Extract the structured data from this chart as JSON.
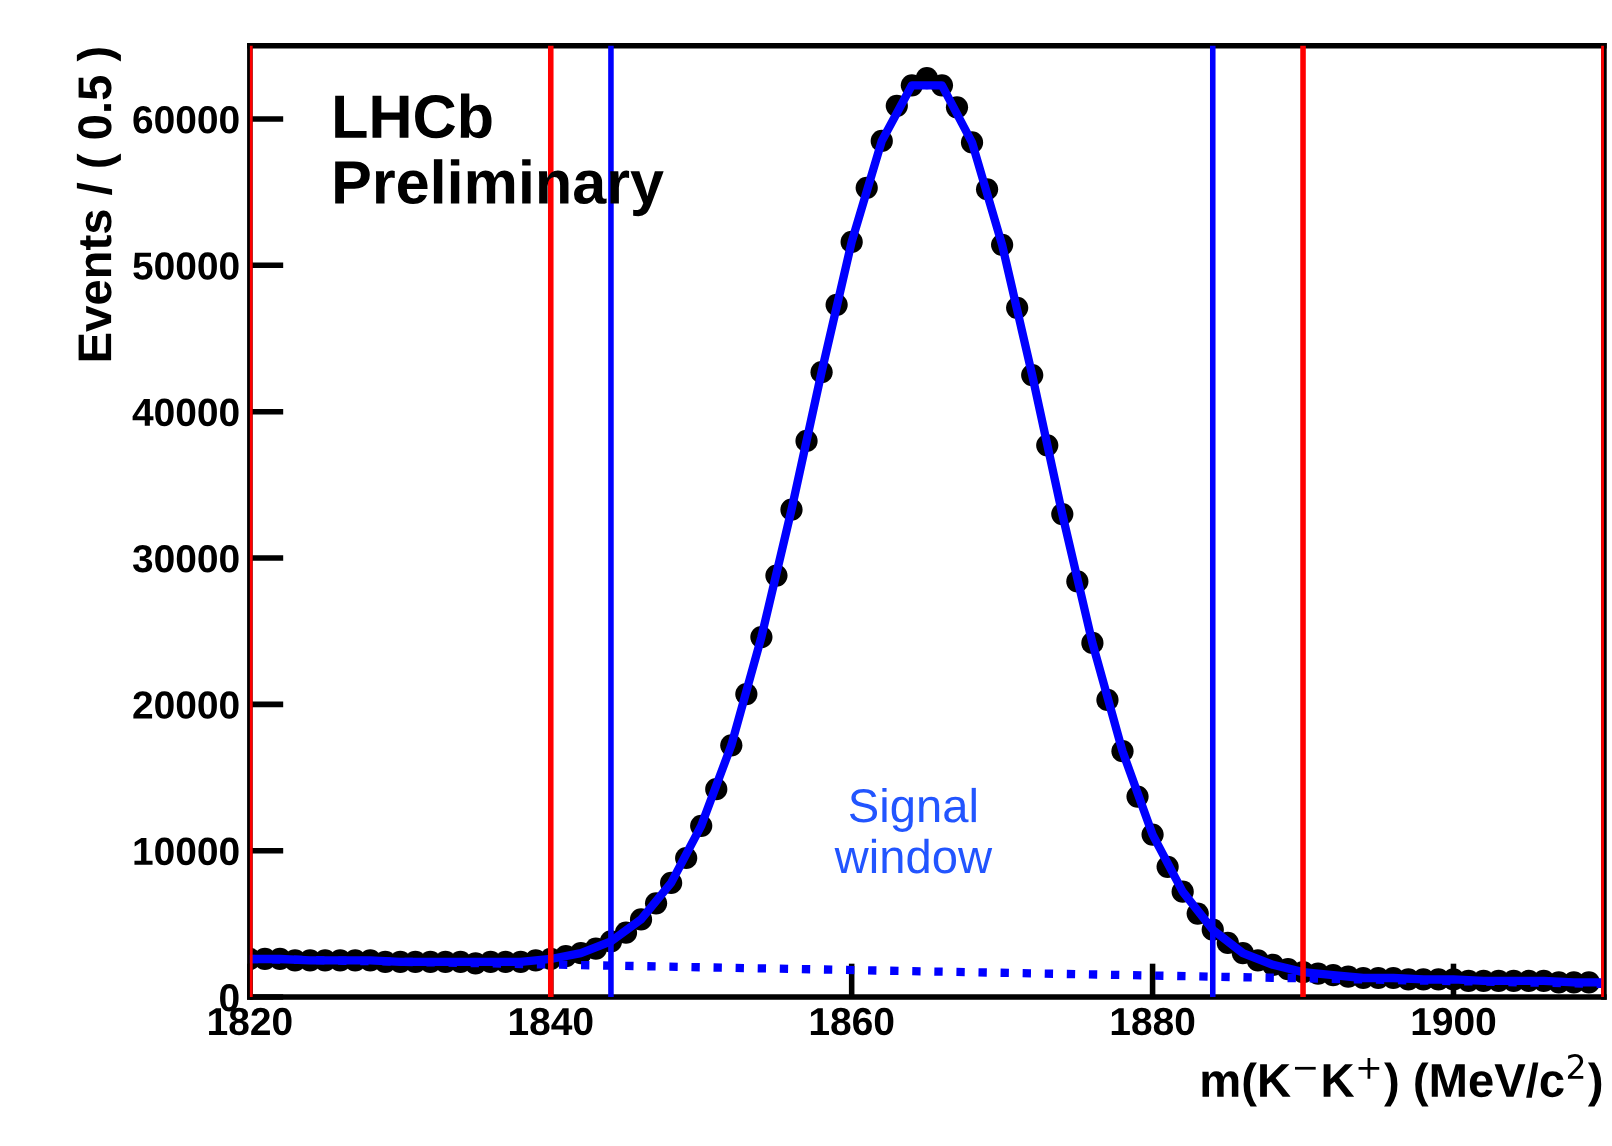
{
  "chart_data": {
    "type": "scatter",
    "xlabel": "m(K$^{−}$K$^{+}$) (MeV/c$^{2}$)",
    "ylabel": "Events / ( 0.5 )",
    "xlim": [
      1820,
      1910
    ],
    "xticks": [
      1820,
      1840,
      1860,
      1880,
      1900
    ],
    "ylim": [
      0,
      65000
    ],
    "yticks": [
      0,
      10000,
      20000,
      30000,
      40000,
      50000,
      60000
    ],
    "grid": false,
    "legend": false,
    "x": [
      1820,
      1821,
      1822,
      1823,
      1824,
      1825,
      1826,
      1827,
      1828,
      1829,
      1830,
      1831,
      1832,
      1833,
      1834,
      1835,
      1836,
      1837,
      1838,
      1839,
      1840,
      1841,
      1842,
      1843,
      1844,
      1845,
      1846,
      1847,
      1848,
      1849,
      1850,
      1851,
      1852,
      1853,
      1854,
      1855,
      1856,
      1857,
      1858,
      1859,
      1860,
      1861,
      1862,
      1863,
      1864,
      1865,
      1866,
      1867,
      1868,
      1869,
      1870,
      1871,
      1872,
      1873,
      1874,
      1875,
      1876,
      1877,
      1878,
      1879,
      1880,
      1881,
      1882,
      1883,
      1884,
      1885,
      1886,
      1887,
      1888,
      1889,
      1890,
      1891,
      1892,
      1893,
      1894,
      1895,
      1896,
      1897,
      1898,
      1899,
      1900,
      1901,
      1902,
      1903,
      1904,
      1905,
      1906,
      1907,
      1908,
      1909
    ],
    "series": [
      {
        "color": "#000000",
        "marker": "circle",
        "values": [
          2600,
          2600,
          2600,
          2500,
          2500,
          2500,
          2500,
          2500,
          2500,
          2400,
          2400,
          2400,
          2400,
          2400,
          2400,
          2300,
          2400,
          2400,
          2400,
          2500,
          2600,
          2800,
          3000,
          3300,
          3800,
          4400,
          5300,
          6400,
          7800,
          9500,
          11700,
          14200,
          17200,
          20700,
          24600,
          28800,
          33300,
          38000,
          42700,
          47300,
          51600,
          55300,
          58500,
          60900,
          62300,
          62800,
          62300,
          60800,
          58400,
          55200,
          51400,
          47100,
          42500,
          37700,
          33000,
          28400,
          24200,
          20300,
          16800,
          13700,
          11100,
          8900,
          7200,
          5700,
          4600,
          3700,
          3000,
          2500,
          2200,
          1900,
          1700,
          1600,
          1500,
          1400,
          1300,
          1300,
          1300,
          1200,
          1200,
          1200,
          1200,
          1100,
          1100,
          1100,
          1100,
          1100,
          1100,
          1000,
          1000,
          1000
        ]
      },
      {
        "type": "line",
        "color": "#0000ff",
        "line_style": "solid",
        "x": [
          1820,
          1822,
          1824,
          1826,
          1828,
          1830,
          1832,
          1834,
          1836,
          1838,
          1840,
          1842,
          1844,
          1846,
          1848,
          1850,
          1852,
          1854,
          1856,
          1858,
          1860,
          1862,
          1864,
          1866,
          1868,
          1870,
          1872,
          1874,
          1876,
          1878,
          1880,
          1882,
          1884,
          1886,
          1888,
          1890,
          1892,
          1894,
          1896,
          1898,
          1900,
          1902,
          1904,
          1906,
          1908,
          1910
        ],
        "values": [
          2600,
          2600,
          2500,
          2500,
          2500,
          2400,
          2400,
          2400,
          2400,
          2400,
          2600,
          3000,
          3800,
          5300,
          7800,
          11700,
          17200,
          24600,
          33300,
          42700,
          51600,
          58500,
          62300,
          62300,
          58400,
          51400,
          42500,
          33000,
          24200,
          16800,
          11100,
          7200,
          4600,
          3000,
          2200,
          1700,
          1500,
          1300,
          1300,
          1200,
          1200,
          1100,
          1100,
          1100,
          1000,
          1000
        ]
      },
      {
        "type": "line",
        "color": "#0000ff",
        "line_style": "dotted",
        "x": [
          1820,
          1910
        ],
        "values": [
          2600,
          900
        ]
      }
    ],
    "ref_lines": [
      {
        "axis": "x",
        "value": 1820,
        "color": "#ff0000"
      },
      {
        "axis": "x",
        "value": 1840,
        "color": "#ff0000"
      },
      {
        "axis": "x",
        "value": 1890,
        "color": "#ff0000"
      },
      {
        "axis": "x",
        "value": 1910,
        "color": "#ff0000"
      },
      {
        "axis": "x",
        "value": 1844,
        "color": "#0000ff"
      },
      {
        "axis": "x",
        "value": 1884,
        "color": "#0000ff"
      }
    ],
    "annotations": [
      "LHCb\nPreliminary",
      "Signal\nwindow"
    ]
  }
}
